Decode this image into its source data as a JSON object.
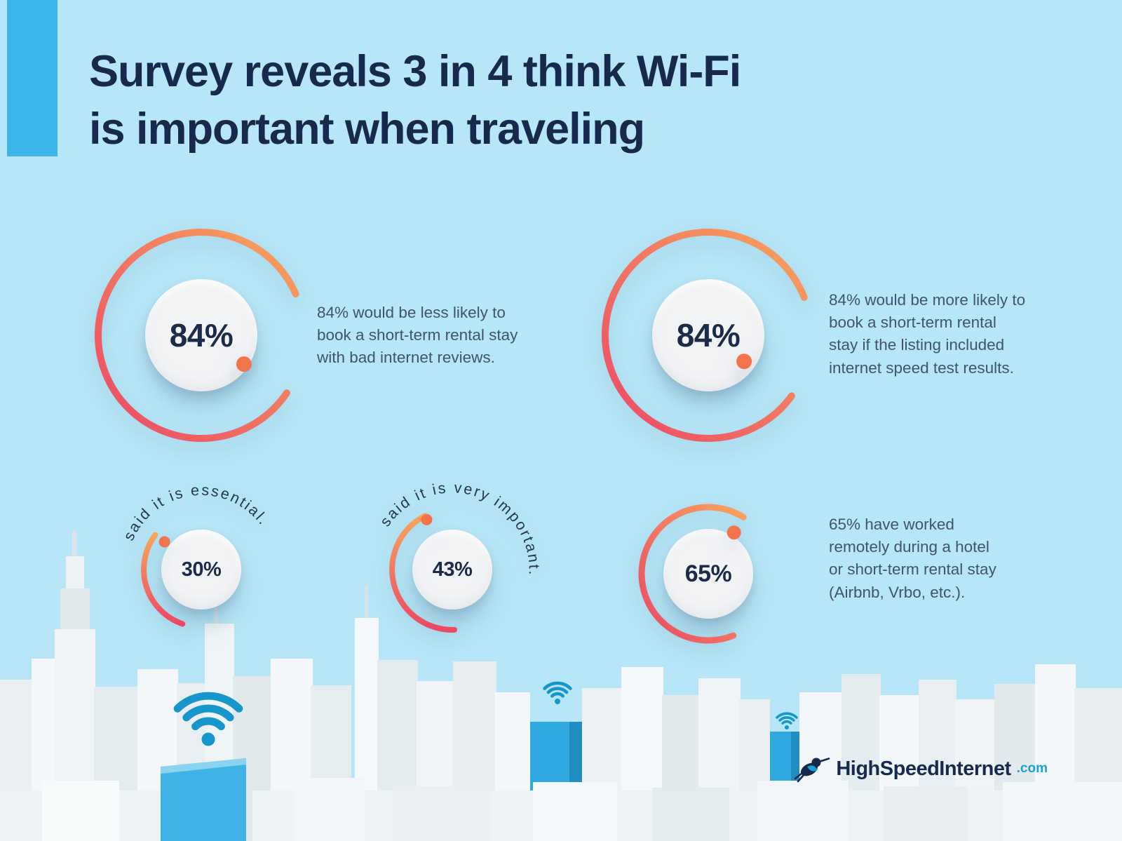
{
  "title": {
    "text": "Survey reveals 3 in 4 think Wi-Fi\nis important when traveling"
  },
  "chart_data": {
    "type": "donut-gauges",
    "unit": "%",
    "palette": {
      "background": "#B6E6F7",
      "accent_bar": "#3CB5E8",
      "arc_gradient_start": "#F9A45C",
      "arc_gradient_end": "#EB4867",
      "dot": "#F3744B",
      "inner_circle": "#F2F3F5",
      "value_color": "#1C2B4A",
      "wifi_icon": "#1796CB"
    },
    "gauges": [
      {
        "id": "less-likely-book",
        "value": 84,
        "label": "84%",
        "description": "84% would be less likely to\nbook a short-term rental stay\nwith bad internet reviews."
      },
      {
        "id": "more-likely-book",
        "value": 84,
        "label": "84%",
        "description": "84% would be more likely to\nbook a short-term rental\nstay if the listing included\ninternet speed test results."
      },
      {
        "id": "essential",
        "value": 30,
        "label": "30%",
        "curved_label": "said it is essential."
      },
      {
        "id": "very-important",
        "value": 43,
        "label": "43%",
        "curved_label": "said it is very important."
      },
      {
        "id": "worked-remotely",
        "value": 65,
        "label": "65%",
        "description": "65% have worked\nremotely during a hotel\nor short-term rental stay\n(Airbnb, Vrbo, etc.)."
      }
    ]
  },
  "footer": {
    "logo_brand": "HighSpeedInternet",
    "logo_tld": ".com"
  },
  "icons": {
    "wifi": "wifi-icon",
    "logo_mark": "hummingbird-icon"
  }
}
